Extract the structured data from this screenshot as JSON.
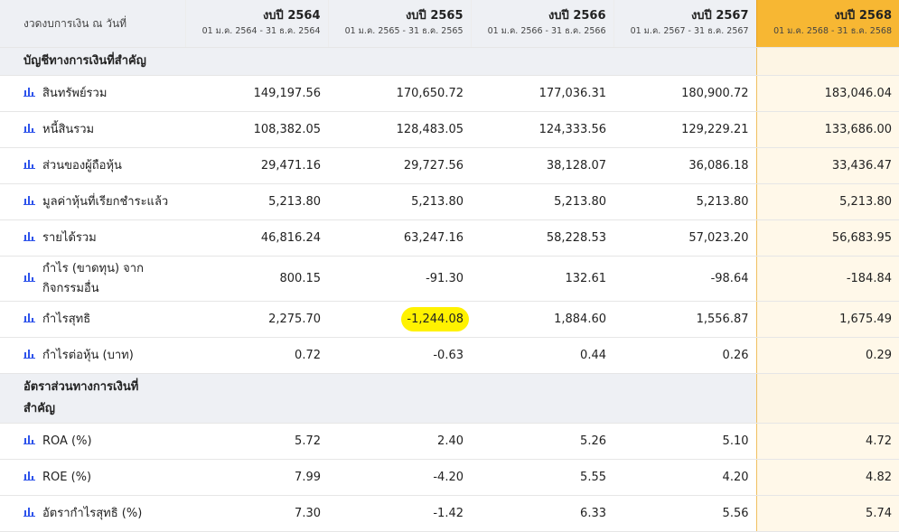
{
  "header": {
    "corner_label": "งวดงบการเงิน ณ วันที่",
    "years": [
      {
        "title": "งบปี 2564",
        "range": "01 ม.ค. 2564 - 31 ธ.ค. 2564"
      },
      {
        "title": "งบปี 2565",
        "range": "01 ม.ค. 2565 - 31 ธ.ค. 2565"
      },
      {
        "title": "งบปี 2566",
        "range": "01 ม.ค. 2566 - 31 ธ.ค. 2566"
      },
      {
        "title": "งบปี 2567",
        "range": "01 ม.ค. 2567 - 31 ธ.ค. 2567"
      },
      {
        "title": "งบปี 2568",
        "range": "01 ม.ค. 2568 - 31 ธ.ค. 2568"
      }
    ]
  },
  "sections": [
    {
      "title": "บัญชีทางการเงินที่สำคัญ",
      "rows": [
        {
          "label": "สินทรัพย์รวม",
          "values": [
            "149,197.56",
            "170,650.72",
            "177,036.31",
            "180,900.72",
            "183,046.04"
          ]
        },
        {
          "label": "หนี้สินรวม",
          "values": [
            "108,382.05",
            "128,483.05",
            "124,333.56",
            "129,229.21",
            "133,686.00"
          ]
        },
        {
          "label": "ส่วนของผู้ถือหุ้น",
          "values": [
            "29,471.16",
            "29,727.56",
            "38,128.07",
            "36,086.18",
            "33,436.47"
          ]
        },
        {
          "label": "มูลค่าหุ้นที่เรียกชำระแล้ว",
          "values": [
            "5,213.80",
            "5,213.80",
            "5,213.80",
            "5,213.80",
            "5,213.80"
          ]
        },
        {
          "label": "รายได้รวม",
          "values": [
            "46,816.24",
            "63,247.16",
            "58,228.53",
            "57,023.20",
            "56,683.95"
          ]
        },
        {
          "label": "กำไร (ขาดทุน) จากกิจกรรมอื่น",
          "values": [
            "800.15",
            "-91.30",
            "132.61",
            "-98.64",
            "-184.84"
          ]
        },
        {
          "label": "กำไรสุทธิ",
          "values": [
            "2,275.70",
            "-1,244.08",
            "1,884.60",
            "1,556.87",
            "1,675.49"
          ]
        },
        {
          "label": "กำไรต่อหุ้น (บาท)",
          "values": [
            "0.72",
            "-0.63",
            "0.44",
            "0.26",
            "0.29"
          ]
        }
      ]
    },
    {
      "title": "อัตราส่วนทางการเงินที่สำคัญ",
      "rows": [
        {
          "label": "ROA (%)",
          "values": [
            "5.72",
            "2.40",
            "5.26",
            "5.10",
            "4.72"
          ]
        },
        {
          "label": "ROE (%)",
          "values": [
            "7.99",
            "-4.20",
            "5.55",
            "4.20",
            "4.82"
          ]
        },
        {
          "label": "อัตรากำไรสุทธิ (%)",
          "values": [
            "7.30",
            "-1.42",
            "6.33",
            "5.56",
            "5.74"
          ]
        }
      ]
    }
  ],
  "highlight": {
    "section": 0,
    "row": 6,
    "col": 1,
    "color": "#fff200"
  },
  "colors": {
    "header_bg": "#eef0f4",
    "current_year_bg": "#f7b733",
    "icon": "#2f54eb"
  },
  "icon": "bar-chart-icon"
}
